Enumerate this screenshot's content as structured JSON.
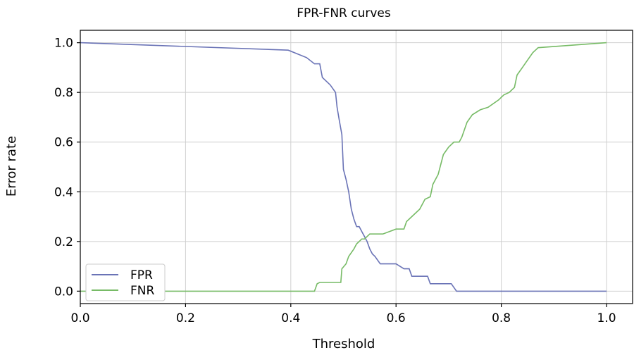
{
  "chart_data": {
    "type": "line",
    "title": "FPR-FNR curves",
    "xlabel": "Threshold",
    "ylabel": "Error rate",
    "xlim": [
      0.0,
      1.0
    ],
    "ylim": [
      -0.05,
      1.05
    ],
    "xticks": [
      0.0,
      0.2,
      0.4,
      0.6,
      0.8,
      1.0
    ],
    "yticks": [
      0.0,
      0.2,
      0.4,
      0.6,
      0.8,
      1.0
    ],
    "xtick_labels": [
      "0.0",
      "0.2",
      "0.4",
      "0.6",
      "0.8",
      "1.0"
    ],
    "ytick_labels": [
      "0.0",
      "0.2",
      "0.4",
      "0.6",
      "0.8",
      "1.0"
    ],
    "grid": true,
    "legend_position": "bottom-left",
    "series": [
      {
        "name": "FPR",
        "color": "#6a73b6",
        "x": [
          0.0,
          0.395,
          0.43,
          0.445,
          0.455,
          0.46,
          0.475,
          0.485,
          0.488,
          0.492,
          0.497,
          0.5,
          0.505,
          0.51,
          0.515,
          0.52,
          0.525,
          0.53,
          0.535,
          0.54,
          0.545,
          0.55,
          0.555,
          0.56,
          0.57,
          0.575,
          0.6,
          0.615,
          0.625,
          0.63,
          0.66,
          0.665,
          0.705,
          0.715,
          1.0
        ],
        "y": [
          1.0,
          0.97,
          0.94,
          0.915,
          0.915,
          0.86,
          0.83,
          0.8,
          0.74,
          0.69,
          0.63,
          0.49,
          0.45,
          0.4,
          0.33,
          0.29,
          0.26,
          0.26,
          0.24,
          0.22,
          0.2,
          0.17,
          0.15,
          0.14,
          0.11,
          0.11,
          0.11,
          0.09,
          0.09,
          0.06,
          0.06,
          0.03,
          0.03,
          0.0,
          0.0
        ]
      },
      {
        "name": "FNR",
        "color": "#77bb66",
        "x": [
          0.0,
          0.445,
          0.45,
          0.455,
          0.495,
          0.497,
          0.505,
          0.51,
          0.52,
          0.525,
          0.535,
          0.54,
          0.55,
          0.575,
          0.6,
          0.615,
          0.62,
          0.63,
          0.645,
          0.655,
          0.665,
          0.67,
          0.68,
          0.69,
          0.7,
          0.71,
          0.72,
          0.725,
          0.735,
          0.745,
          0.76,
          0.775,
          0.795,
          0.8,
          0.805,
          0.815,
          0.825,
          0.83,
          0.84,
          0.85,
          0.86,
          0.87,
          1.0
        ],
        "y": [
          0.0,
          0.0,
          0.03,
          0.035,
          0.035,
          0.09,
          0.11,
          0.14,
          0.17,
          0.19,
          0.21,
          0.21,
          0.23,
          0.23,
          0.25,
          0.25,
          0.28,
          0.3,
          0.33,
          0.37,
          0.38,
          0.43,
          0.47,
          0.55,
          0.58,
          0.6,
          0.6,
          0.62,
          0.68,
          0.71,
          0.73,
          0.74,
          0.77,
          0.78,
          0.79,
          0.8,
          0.82,
          0.87,
          0.9,
          0.93,
          0.96,
          0.98,
          1.0
        ]
      }
    ]
  }
}
